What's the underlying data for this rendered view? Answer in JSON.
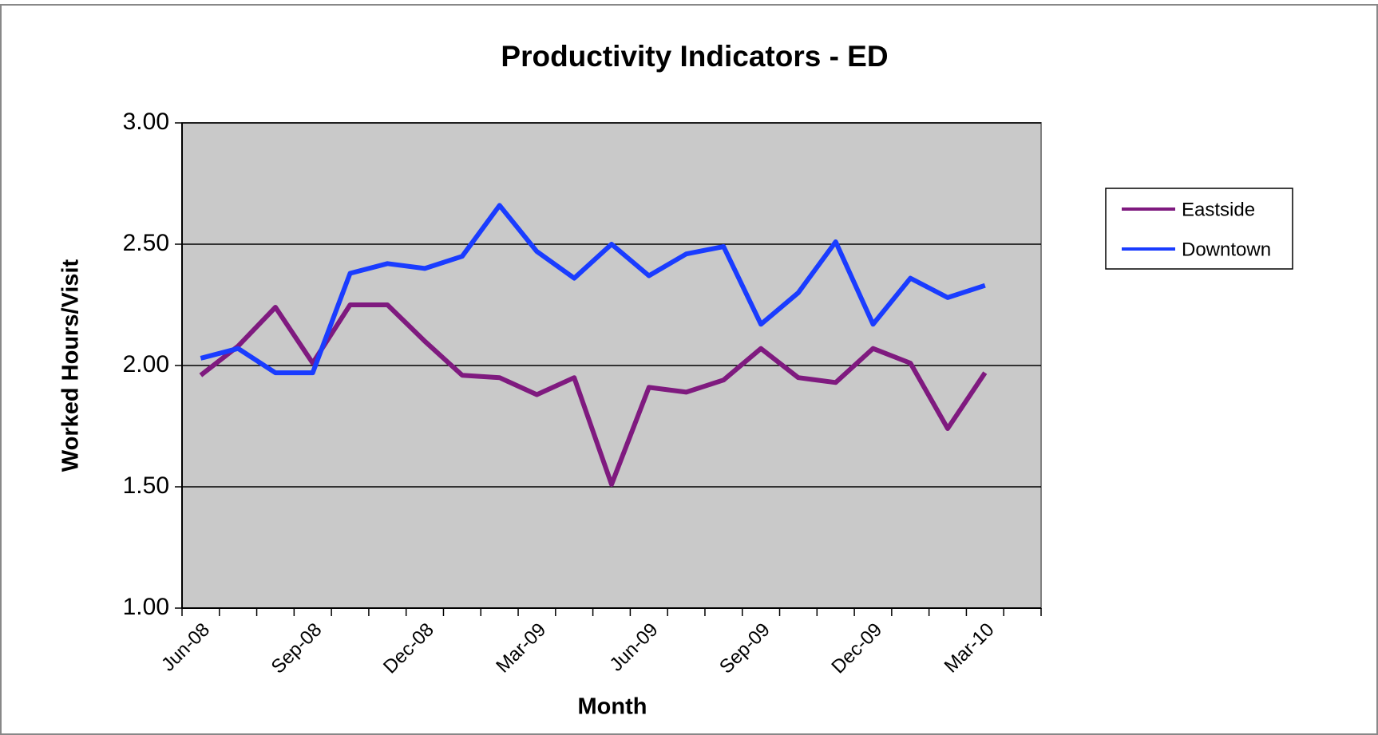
{
  "chart_data": {
    "type": "line",
    "title": "Productivity Indicators - ED",
    "x_label": "Month",
    "y_label": "Worked Hours/Visit",
    "categories": [
      "Jun-08",
      null,
      null,
      "Sep-08",
      null,
      null,
      "Dec-08",
      null,
      null,
      "Mar-09",
      null,
      null,
      "Jun-09",
      null,
      null,
      "Sep-09",
      null,
      null,
      "Dec-09",
      null,
      null,
      "Mar-10",
      null
    ],
    "series": [
      {
        "name": "Eastside",
        "color": "#7f1a7f",
        "values": [
          1.96,
          2.08,
          2.24,
          2.01,
          2.25,
          2.25,
          2.1,
          1.96,
          1.95,
          1.88,
          1.95,
          1.51,
          1.91,
          1.89,
          1.94,
          2.07,
          1.95,
          1.93,
          2.07,
          2.01,
          1.74,
          1.97,
          null
        ]
      },
      {
        "name": "Downtown",
        "color": "#1a3cff",
        "values": [
          2.03,
          2.07,
          1.97,
          1.97,
          2.38,
          2.42,
          2.4,
          2.45,
          2.66,
          2.47,
          2.36,
          2.5,
          2.37,
          2.46,
          2.49,
          2.17,
          2.3,
          2.51,
          2.17,
          2.36,
          2.28,
          2.33,
          null
        ]
      }
    ],
    "ylim": [
      1,
      3
    ],
    "yticks": [
      {
        "value": 1,
        "label": "1.00"
      },
      {
        "value": 1.5,
        "label": "1.50"
      },
      {
        "value": 2,
        "label": "2.00"
      },
      {
        "value": 2.5,
        "label": "2.50"
      },
      {
        "value": 3,
        "label": "3.00"
      }
    ],
    "grid": true,
    "legend": "right"
  }
}
